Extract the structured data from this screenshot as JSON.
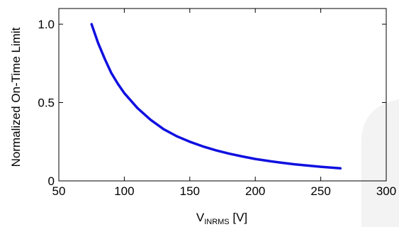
{
  "chart_data": {
    "type": "line",
    "title": "",
    "xlabel": {
      "main": "V",
      "subscript": "INRMS",
      "unit": " [V]"
    },
    "ylabel": "Normalized On-Time Limit",
    "xlim": [
      50,
      300
    ],
    "ylim": [
      0,
      1.1
    ],
    "x_ticks": [
      50,
      100,
      150,
      200,
      250,
      300
    ],
    "x_tick_labels": [
      "50",
      "100",
      "150",
      "200",
      "250",
      "300"
    ],
    "y_ticks": [
      0,
      0.5,
      1.0
    ],
    "y_tick_labels": [
      "0",
      "0.5",
      "1.0"
    ],
    "grid": false,
    "legend": "none",
    "series": [
      {
        "color": "#1010e0",
        "x": [
          75,
          80,
          85,
          90,
          95,
          100,
          110,
          120,
          130,
          140,
          150,
          160,
          170,
          180,
          190,
          200,
          210,
          220,
          230,
          240,
          250,
          265
        ],
        "y": [
          1.0,
          0.88,
          0.78,
          0.69,
          0.62,
          0.56,
          0.465,
          0.39,
          0.33,
          0.285,
          0.25,
          0.22,
          0.195,
          0.174,
          0.156,
          0.14,
          0.127,
          0.116,
          0.106,
          0.098,
          0.09,
          0.08
        ]
      }
    ]
  }
}
